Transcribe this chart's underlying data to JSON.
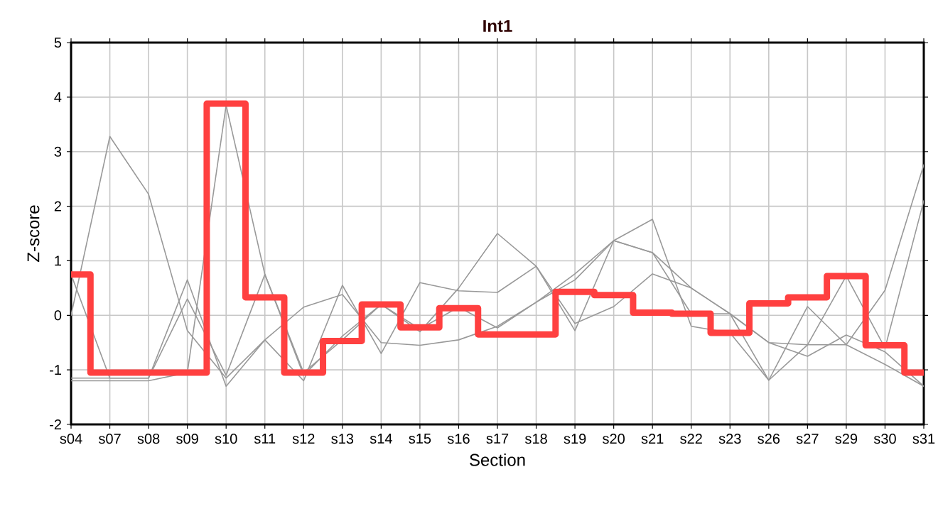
{
  "chart_data": {
    "type": "line",
    "title": "Int1",
    "xlabel": "Section",
    "ylabel": "Z-score",
    "categories": [
      "s04",
      "s07",
      "s08",
      "s09",
      "s10",
      "s11",
      "s12",
      "s13",
      "s14",
      "s15",
      "s16",
      "s17",
      "s18",
      "s19",
      "s20",
      "s21",
      "s22",
      "s23",
      "s26",
      "s27",
      "s29",
      "s30",
      "s31"
    ],
    "series": [
      {
        "color": "#999999",
        "values": [
          0,
          3.28,
          2.22,
          -0.28,
          -1.15,
          -0.45,
          0.15,
          0.38,
          -0.5,
          -0.55,
          -0.45,
          -0.2,
          0.24,
          0.76,
          1.37,
          1.15,
          0.5,
          0.03,
          -0.5,
          -0.75,
          -0.36,
          -0.67,
          -1.3
        ]
      },
      {
        "color": "#999999",
        "values": [
          0.75,
          -1.15,
          -1.15,
          0.65,
          -1.3,
          -0.45,
          -1.2,
          0.55,
          -0.7,
          0.6,
          0.45,
          0.42,
          0.9,
          -0.15,
          0.16,
          0.76,
          0.5,
          0.03,
          -1.19,
          0.16,
          -0.54,
          0.46,
          2.76
        ]
      },
      {
        "color": "#999999",
        "values": [
          -1.15,
          -1.15,
          -1.15,
          0.3,
          -1.1,
          0.75,
          -1.1,
          -0.38,
          0.2,
          -0.3,
          0.5,
          1.5,
          0.9,
          -0.28,
          1.37,
          1.76,
          -0.2,
          -0.32,
          -1.19,
          -0.54,
          -0.54,
          -0.9,
          -1.3
        ]
      },
      {
        "color": "#999999",
        "values": [
          -1.2,
          -1.2,
          -1.2,
          -1.05,
          3.85,
          0.75,
          -1.05,
          -0.45,
          0.2,
          -0.25,
          0.15,
          -0.23,
          0.24,
          0.65,
          1.37,
          1.15,
          0.03,
          0.03,
          -0.5,
          -0.54,
          0.72,
          -0.6,
          2.1
        ]
      },
      {
        "type": "step",
        "color": "#ff4040",
        "values": [
          0.75,
          -1.05,
          -1.05,
          -1.05,
          3.88,
          0.33,
          -1.05,
          -0.47,
          0.2,
          -0.22,
          0.13,
          -0.35,
          -0.35,
          0.43,
          0.37,
          0.05,
          0.03,
          -0.32,
          0.22,
          0.33,
          0.72,
          -0.55,
          -1.05
        ]
      }
    ],
    "ylim": [
      -2,
      5
    ],
    "yticks": [
      -2,
      -1,
      0,
      1,
      2,
      3,
      4,
      5
    ],
    "grid": true,
    "marker": "none",
    "line_style": "solid"
  }
}
